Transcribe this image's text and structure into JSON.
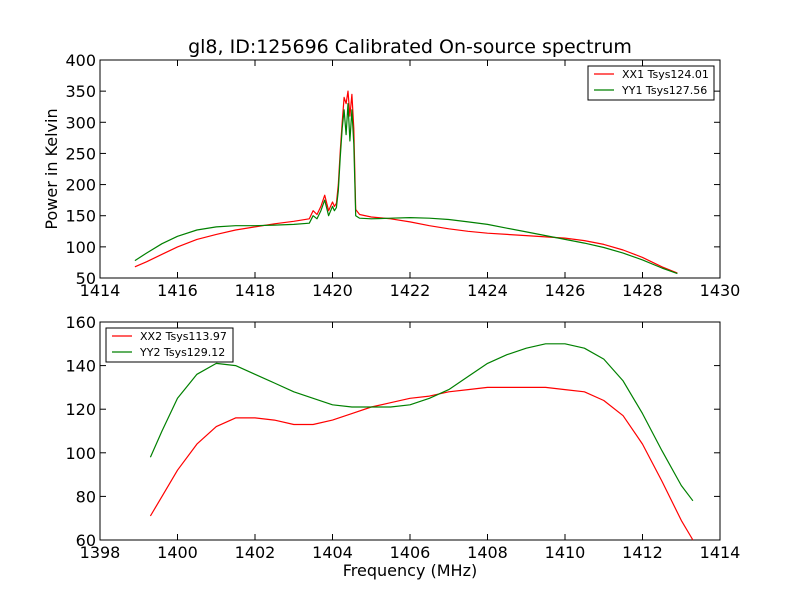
{
  "title": "gl8, ID:125696 Calibrated On-source spectrum",
  "chart_data": [
    {
      "type": "line",
      "ylabel": "Power in Kelvin",
      "xlabel": "",
      "xlim": [
        1414,
        1430
      ],
      "ylim": [
        50,
        400
      ],
      "xticks": [
        1414,
        1416,
        1418,
        1420,
        1422,
        1424,
        1426,
        1428,
        1430
      ],
      "yticks": [
        50,
        100,
        150,
        200,
        250,
        300,
        350,
        400
      ],
      "grid": false,
      "legend_position": "upper-right",
      "series": [
        {
          "name": "XX1 Tsys124.01",
          "color": "#ff0000",
          "x": [
            1414.9,
            1415.2,
            1415.6,
            1416.0,
            1416.5,
            1417.0,
            1417.5,
            1418.0,
            1418.5,
            1419.0,
            1419.4,
            1419.5,
            1419.6,
            1419.7,
            1419.8,
            1419.9,
            1420.0,
            1420.05,
            1420.1,
            1420.15,
            1420.2,
            1420.25,
            1420.3,
            1420.35,
            1420.4,
            1420.45,
            1420.5,
            1420.55,
            1420.6,
            1420.7,
            1421.0,
            1421.5,
            1422.0,
            1422.5,
            1423.0,
            1423.5,
            1424.0,
            1424.5,
            1425.0,
            1425.5,
            1426.0,
            1426.5,
            1427.0,
            1427.5,
            1428.0,
            1428.5,
            1428.9
          ],
          "y": [
            68,
            76,
            88,
            100,
            112,
            120,
            127,
            132,
            137,
            141,
            145,
            158,
            152,
            165,
            183,
            158,
            172,
            165,
            170,
            200,
            255,
            300,
            340,
            330,
            350,
            310,
            345,
            290,
            160,
            152,
            148,
            145,
            140,
            134,
            129,
            125,
            122,
            120,
            118,
            116,
            114,
            110,
            104,
            95,
            83,
            68,
            58
          ]
        },
        {
          "name": "YY1 Tsys127.56",
          "color": "#008000",
          "x": [
            1414.9,
            1415.2,
            1415.6,
            1416.0,
            1416.5,
            1417.0,
            1417.5,
            1418.0,
            1418.5,
            1419.0,
            1419.4,
            1419.5,
            1419.6,
            1419.7,
            1419.8,
            1419.9,
            1420.0,
            1420.05,
            1420.1,
            1420.15,
            1420.2,
            1420.25,
            1420.3,
            1420.35,
            1420.4,
            1420.45,
            1420.5,
            1420.55,
            1420.6,
            1420.7,
            1421.0,
            1421.5,
            1422.0,
            1422.5,
            1423.0,
            1423.5,
            1424.0,
            1424.5,
            1425.0,
            1425.5,
            1426.0,
            1426.5,
            1427.0,
            1427.5,
            1428.0,
            1428.5,
            1428.9
          ],
          "y": [
            78,
            90,
            105,
            117,
            127,
            132,
            134,
            134,
            135,
            136,
            138,
            150,
            145,
            158,
            175,
            150,
            165,
            158,
            163,
            190,
            245,
            290,
            320,
            280,
            330,
            270,
            320,
            265,
            150,
            146,
            145,
            146,
            147,
            146,
            144,
            140,
            136,
            130,
            124,
            118,
            112,
            106,
            99,
            90,
            79,
            66,
            57
          ]
        }
      ]
    },
    {
      "type": "line",
      "ylabel": "",
      "xlabel": "Frequency (MHz)",
      "xlim": [
        1398,
        1414
      ],
      "ylim": [
        60,
        160
      ],
      "xticks": [
        1398,
        1400,
        1402,
        1404,
        1406,
        1408,
        1410,
        1412,
        1414
      ],
      "yticks": [
        60,
        80,
        100,
        120,
        140,
        160
      ],
      "grid": false,
      "legend_position": "upper-left",
      "series": [
        {
          "name": "XX2 Tsys113.97",
          "color": "#ff0000",
          "x": [
            1399.3,
            1399.6,
            1400.0,
            1400.5,
            1401.0,
            1401.5,
            1402.0,
            1402.5,
            1403.0,
            1403.5,
            1404.0,
            1404.5,
            1405.0,
            1405.5,
            1406.0,
            1406.5,
            1407.0,
            1407.5,
            1408.0,
            1408.5,
            1409.0,
            1409.5,
            1410.0,
            1410.5,
            1411.0,
            1411.5,
            1412.0,
            1412.5,
            1413.0,
            1413.3
          ],
          "y": [
            71,
            80,
            92,
            104,
            112,
            116,
            116,
            115,
            113,
            113,
            115,
            118,
            121,
            123,
            125,
            126,
            128,
            129,
            130,
            130,
            130,
            130,
            129,
            128,
            124,
            117,
            104,
            87,
            69,
            60
          ]
        },
        {
          "name": "YY2 Tsys129.12",
          "color": "#008000",
          "x": [
            1399.3,
            1399.6,
            1400.0,
            1400.5,
            1401.0,
            1401.5,
            1402.0,
            1402.5,
            1403.0,
            1403.5,
            1404.0,
            1404.5,
            1405.0,
            1405.5,
            1406.0,
            1406.5,
            1407.0,
            1407.5,
            1408.0,
            1408.5,
            1409.0,
            1409.5,
            1410.0,
            1410.5,
            1411.0,
            1411.5,
            1412.0,
            1412.5,
            1413.0,
            1413.3
          ],
          "y": [
            98,
            110,
            125,
            136,
            141,
            140,
            136,
            132,
            128,
            125,
            122,
            121,
            121,
            121,
            122,
            125,
            129,
            135,
            141,
            145,
            148,
            150,
            150,
            148,
            143,
            133,
            118,
            101,
            85,
            78
          ]
        }
      ]
    }
  ]
}
